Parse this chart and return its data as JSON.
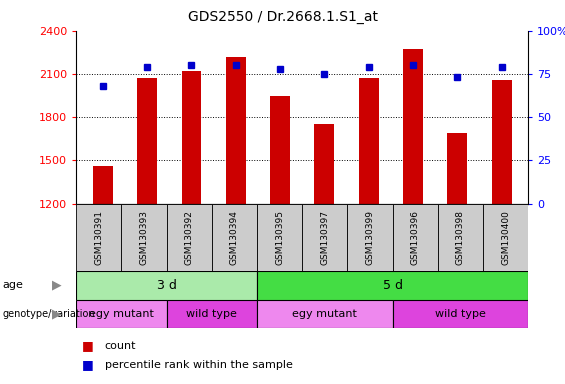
{
  "title": "GDS2550 / Dr.2668.1.S1_at",
  "samples": [
    "GSM130391",
    "GSM130393",
    "GSM130392",
    "GSM130394",
    "GSM130395",
    "GSM130397",
    "GSM130399",
    "GSM130396",
    "GSM130398",
    "GSM130400"
  ],
  "counts": [
    1460,
    2070,
    2120,
    2220,
    1950,
    1750,
    2070,
    2270,
    1690,
    2060
  ],
  "percentiles": [
    68,
    79,
    80,
    80,
    78,
    75,
    79,
    80,
    73,
    79
  ],
  "ylim_left": [
    1200,
    2400
  ],
  "ylim_right": [
    0,
    100
  ],
  "yticks_left": [
    1200,
    1500,
    1800,
    2100,
    2400
  ],
  "yticks_right": [
    0,
    25,
    50,
    75,
    100
  ],
  "bar_color": "#cc0000",
  "dot_color": "#0000cc",
  "age_groups": [
    {
      "label": "3 d",
      "start": 0,
      "end": 4,
      "color": "#aaeaaa"
    },
    {
      "label": "5 d",
      "start": 4,
      "end": 10,
      "color": "#44dd44"
    }
  ],
  "genotype_groups": [
    {
      "label": "egy mutant",
      "start": 0,
      "end": 2,
      "color": "#ee88ee"
    },
    {
      "label": "wild type",
      "start": 2,
      "end": 4,
      "color": "#dd44dd"
    },
    {
      "label": "egy mutant",
      "start": 4,
      "end": 7,
      "color": "#ee88ee"
    },
    {
      "label": "wild type",
      "start": 7,
      "end": 10,
      "color": "#dd44dd"
    }
  ],
  "legend_bar_color": "#cc0000",
  "legend_dot_color": "#0000cc",
  "bg_color": "#ffffff",
  "label_age": "age",
  "label_genotype": "genotype/variation",
  "legend_count": "count",
  "legend_percentile": "percentile rank within the sample",
  "sample_box_color": "#cccccc"
}
